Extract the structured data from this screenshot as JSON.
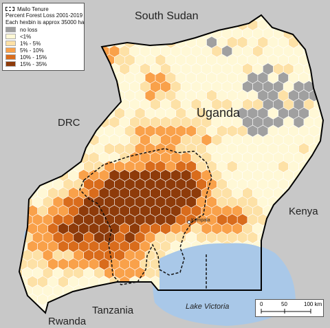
{
  "labels": {
    "south_sudan": "South Sudan",
    "uganda": "Uganda",
    "drc": "DRC",
    "kenya": "Kenya",
    "tanzania": "Tanzania",
    "rwanda": "Rwanda",
    "lake_victoria": "Lake Victoria",
    "kampala": "Kampala"
  },
  "legend": {
    "boundary_label": "Mailo Tenure",
    "title": "Percent Forest Loss 2001-2019",
    "subtitle": "Each hexbin is approx 35000 ha",
    "classes": [
      {
        "label": "no loss",
        "color": "#a0a0a0"
      },
      {
        "label": "<1%",
        "color": "#fff8d6"
      },
      {
        "label": "1% - 5%",
        "color": "#fde1a6"
      },
      {
        "label": "5% - 10%",
        "color": "#f9a14a"
      },
      {
        "label": "10% - 15%",
        "color": "#d96c1c"
      },
      {
        "label": "15% - 35%",
        "color": "#8e3b0a"
      }
    ]
  },
  "scale": {
    "ticks": [
      "0",
      "50",
      "100 km"
    ]
  },
  "colors": {
    "background_land": "#c8c8c8",
    "water": "#a9c8e8",
    "border": "#000000"
  }
}
